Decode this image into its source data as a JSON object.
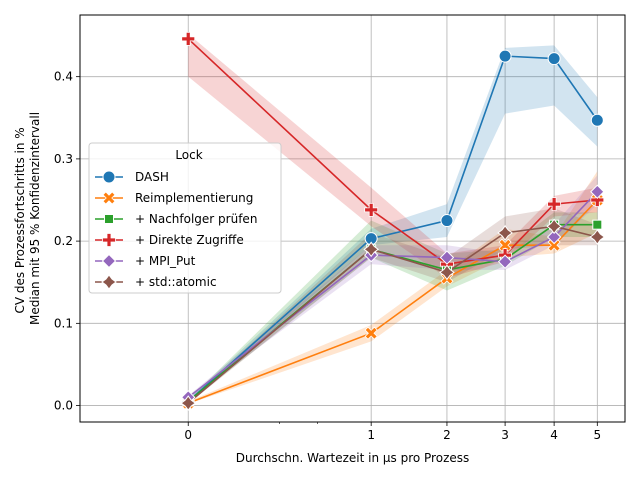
{
  "chart_data": {
    "type": "line",
    "xlabel": "Durchschn. Wartezeit in µs pro Prozess",
    "ylabel": [
      "CV des Prozessfortschritts in %",
      "Median mit 95 % Konfidenzintervall"
    ],
    "x_scale": "sqrt",
    "xlim": [
      -0.35,
      5.7
    ],
    "ylim": [
      -0.02,
      0.475
    ],
    "x_ticks": [
      0,
      1,
      2,
      3,
      4,
      5
    ],
    "y_ticks": [
      0.0,
      0.1,
      0.2,
      0.3,
      0.4
    ],
    "y_tick_labels": [
      "0.0",
      "0.1",
      "0.2",
      "0.3",
      "0.4"
    ],
    "grid": true,
    "legend": {
      "title": "Lock",
      "placement": "center-left"
    },
    "x": [
      0,
      1,
      2,
      3,
      4,
      5
    ],
    "series": [
      {
        "name": "DASH",
        "color": "#1f77b4",
        "marker": "circle",
        "values": [
          0.005,
          0.203,
          0.225,
          0.425,
          0.422,
          0.347
        ],
        "lower": [
          0.003,
          0.195,
          0.205,
          0.355,
          0.365,
          0.315
        ],
        "upper": [
          0.007,
          0.215,
          0.245,
          0.435,
          0.438,
          0.375
        ]
      },
      {
        "name": "Reimplementierung",
        "color": "#ff7f0e",
        "marker": "x-filled",
        "values": [
          0.003,
          0.088,
          0.155,
          0.195,
          0.195,
          0.25
        ],
        "lower": [
          0.002,
          0.078,
          0.145,
          0.18,
          0.185,
          0.21
        ],
        "upper": [
          0.005,
          0.098,
          0.165,
          0.215,
          0.205,
          0.285
        ]
      },
      {
        "name": "+ Nachfolger prüfen",
        "color": "#2ca02c",
        "marker": "square",
        "values": [
          0.005,
          0.19,
          0.165,
          0.178,
          0.22,
          0.22
        ],
        "lower": [
          0.003,
          0.18,
          0.14,
          0.17,
          0.205,
          0.205
        ],
        "upper": [
          0.007,
          0.225,
          0.185,
          0.19,
          0.235,
          0.235
        ]
      },
      {
        "name": "+ Direkte Zugriffe",
        "color": "#d62728",
        "marker": "plus",
        "values": [
          0.446,
          0.238,
          0.172,
          0.183,
          0.245,
          0.25
        ],
        "lower": [
          0.4,
          0.218,
          0.155,
          0.175,
          0.23,
          0.235
        ],
        "upper": [
          0.452,
          0.265,
          0.185,
          0.195,
          0.255,
          0.265
        ]
      },
      {
        "name": "+ MPI_Put",
        "color": "#9467bd",
        "marker": "diamond",
        "values": [
          0.01,
          0.183,
          0.18,
          0.175,
          0.205,
          0.26
        ],
        "lower": [
          0.007,
          0.172,
          0.165,
          0.165,
          0.195,
          0.245
        ],
        "upper": [
          0.012,
          0.195,
          0.195,
          0.185,
          0.22,
          0.28
        ]
      },
      {
        "name": "+ std::atomic",
        "color": "#8c564b",
        "marker": "thin-diamond",
        "values": [
          0.003,
          0.19,
          0.162,
          0.21,
          0.218,
          0.205
        ],
        "lower": [
          0.002,
          0.18,
          0.15,
          0.19,
          0.195,
          0.195
        ],
        "upper": [
          0.005,
          0.21,
          0.18,
          0.23,
          0.24,
          0.22
        ]
      }
    ]
  }
}
